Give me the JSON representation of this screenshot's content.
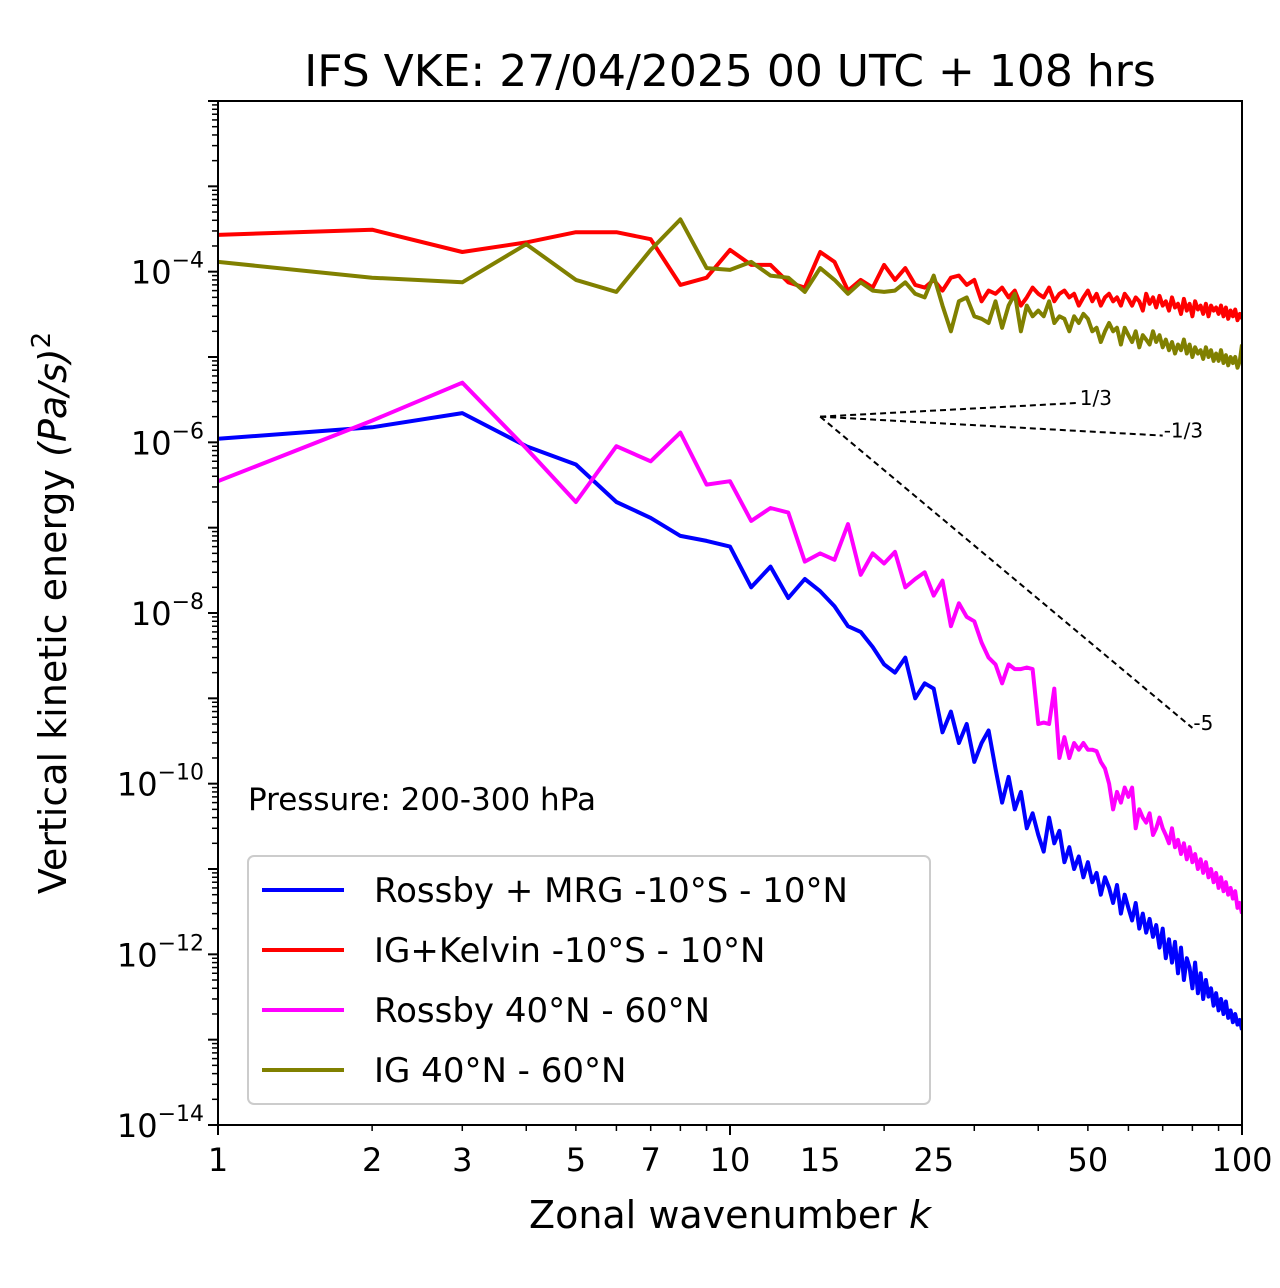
{
  "chart_data": {
    "type": "line",
    "title": "IFS VKE: 27/04/2025 00 UTC + 108 hrs",
    "xlabel": "Zonal wavenumber",
    "xlabel_italic": "k",
    "ylabel": "Vertical kinetic energy",
    "ylabel_math": "(Pa/s)",
    "ylabel_exp": "2",
    "x_scale": "log",
    "y_scale": "log",
    "xlim": [
      1,
      100
    ],
    "ylim": [
      1e-14,
      0.01
    ],
    "x_ticks": [
      1,
      2,
      3,
      5,
      7,
      10,
      15,
      25,
      50,
      100
    ],
    "y_ticks": [
      {
        "base": "10",
        "exp": "−14",
        "value": 1e-14
      },
      {
        "base": "10",
        "exp": "−12",
        "value": 1e-12
      },
      {
        "base": "10",
        "exp": "−10",
        "value": 1e-10
      },
      {
        "base": "10",
        "exp": "−8",
        "value": 1e-08
      },
      {
        "base": "10",
        "exp": "−6",
        "value": 1e-06
      },
      {
        "base": "10",
        "exp": "−4",
        "value": 0.0001
      }
    ],
    "annotation": "Pressure: 200-300 hPa",
    "legend_position": "lower-left",
    "reference_slopes": [
      {
        "label": "1/3",
        "x": [
          15,
          48
        ],
        "y": [
          2e-06,
          2.9e-06
        ]
      },
      {
        "label": "-1/3",
        "x": [
          15,
          70
        ],
        "y": [
          2e-06,
          1.2e-06
        ]
      },
      {
        "label": "-5",
        "x": [
          15,
          80
        ],
        "y": [
          2e-06,
          4.5e-10
        ]
      }
    ],
    "series": [
      {
        "name": "Rossby + MRG -10°S - 10°N",
        "color": "#0000ff",
        "x": [
          1,
          2,
          3,
          4,
          5,
          6,
          7,
          8,
          9,
          10,
          11,
          12,
          13,
          14,
          15,
          16,
          17,
          18,
          19,
          20,
          21,
          22,
          23,
          24,
          25,
          26,
          27,
          28,
          29,
          30,
          31,
          32,
          33,
          34,
          35,
          36,
          37,
          38,
          39,
          40,
          41,
          42,
          43,
          44,
          45,
          46,
          47,
          48,
          49,
          50,
          51,
          52,
          53,
          54,
          55,
          56,
          57,
          58,
          59,
          60,
          61,
          62,
          63,
          64,
          65,
          66,
          67,
          68,
          69,
          70,
          71,
          72,
          73,
          74,
          75,
          76,
          77,
          78,
          79,
          80,
          81,
          82,
          83,
          84,
          85,
          86,
          87,
          88,
          89,
          90,
          91,
          92,
          93,
          94,
          95,
          96,
          97,
          98,
          99,
          100
        ],
        "y": [
          1.1e-06,
          1.5e-06,
          2.2e-06,
          9e-07,
          5.5e-07,
          2e-07,
          1.3e-07,
          8e-08,
          7e-08,
          6e-08,
          2e-08,
          3.5e-08,
          1.5e-08,
          2.5e-08,
          1.8e-08,
          1.2e-08,
          7e-09,
          6e-09,
          4e-09,
          2.5e-09,
          2e-09,
          3e-09,
          1e-09,
          1.5e-09,
          1.3e-09,
          4e-10,
          7e-10,
          3e-10,
          5e-10,
          1.8e-10,
          3e-10,
          4.2e-10,
          1.5e-10,
          6e-11,
          1.2e-10,
          5e-11,
          8e-11,
          3e-11,
          4.5e-11,
          2.5e-11,
          1.6e-11,
          4e-11,
          2e-11,
          2.8e-11,
          1.2e-11,
          1.8e-11,
          1e-11,
          1.4e-11,
          8e-12,
          1.2e-11,
          7e-12,
          9e-12,
          5e-12,
          8e-12,
          6e-12,
          4e-12,
          6.5e-12,
          3e-12,
          5e-12,
          3.5e-12,
          2.5e-12,
          4e-12,
          2e-12,
          3e-12,
          1.8e-12,
          2.6e-12,
          1.6e-12,
          2.2e-12,
          1.2e-12,
          2e-12,
          9e-13,
          1.5e-12,
          8e-13,
          1.4e-12,
          6e-13,
          1.2e-12,
          5e-13,
          9e-13,
          7e-13,
          4e-13,
          8e-13,
          3.5e-13,
          6e-13,
          3e-13,
          5e-13,
          3.2e-13,
          4e-13,
          2.5e-13,
          3.5e-13,
          2.2e-13,
          3e-13,
          2e-13,
          2.8e-13,
          1.8e-13,
          2.2e-13,
          1.6e-13,
          2e-13,
          1.5e-13,
          1.7e-13,
          1.3e-13
        ]
      },
      {
        "name": "IG+Kelvin -10°S - 10°N",
        "color": "#ff0000",
        "x": [
          1,
          2,
          3,
          4,
          5,
          6,
          7,
          8,
          9,
          10,
          11,
          12,
          13,
          14,
          15,
          16,
          17,
          18,
          19,
          20,
          21,
          22,
          23,
          24,
          25,
          26,
          27,
          28,
          29,
          30,
          31,
          32,
          33,
          34,
          35,
          36,
          37,
          38,
          39,
          40,
          41,
          42,
          43,
          44,
          45,
          46,
          47,
          48,
          49,
          50,
          51,
          52,
          53,
          54,
          55,
          56,
          57,
          58,
          59,
          60,
          61,
          62,
          63,
          64,
          65,
          66,
          67,
          68,
          69,
          70,
          71,
          72,
          73,
          74,
          75,
          76,
          77,
          78,
          79,
          80,
          81,
          82,
          83,
          84,
          85,
          86,
          87,
          88,
          89,
          90,
          91,
          92,
          93,
          94,
          95,
          96,
          97,
          98,
          99,
          100
        ],
        "y": [
          0.00027,
          0.00031,
          0.00017,
          0.00022,
          0.00029,
          0.00029,
          0.00024,
          7e-05,
          8.5e-05,
          0.00018,
          0.00012,
          0.00012,
          7.5e-05,
          6.5e-05,
          0.00017,
          0.00013,
          6e-05,
          8e-05,
          6.5e-05,
          0.00012,
          8e-05,
          0.00011,
          7e-05,
          6.5e-05,
          8e-05,
          6e-05,
          8.5e-05,
          9e-05,
          7e-05,
          8e-05,
          4.5e-05,
          6e-05,
          5.5e-05,
          6.5e-05,
          5e-05,
          6e-05,
          4e-05,
          5e-05,
          6.5e-05,
          5.5e-05,
          5e-05,
          6.5e-05,
          4.5e-05,
          5.5e-05,
          6e-05,
          5e-05,
          5.5e-05,
          4e-05,
          5e-05,
          6e-05,
          4.5e-05,
          5.5e-05,
          4e-05,
          5e-05,
          5.5e-05,
          4.5e-05,
          5e-05,
          4e-05,
          5.5e-05,
          4.8e-05,
          4e-05,
          5e-05,
          4.5e-05,
          3.5e-05,
          5.5e-05,
          4.2e-05,
          5e-05,
          3.8e-05,
          5.2e-05,
          4e-05,
          4.5e-05,
          3.5e-05,
          5e-05,
          3.8e-05,
          4.2e-05,
          3.2e-05,
          4.8e-05,
          3.5e-05,
          4.2e-05,
          3e-05,
          4.5e-05,
          3.6e-05,
          4e-05,
          3.2e-05,
          4.2e-05,
          3e-05,
          4e-05,
          3.5e-05,
          3.8e-05,
          3.2e-05,
          4e-05,
          3e-05,
          3.8e-05,
          2.8e-05,
          3.5e-05,
          3e-05,
          3.6e-05,
          2.7e-05,
          3.2e-05,
          2.8e-05
        ]
      },
      {
        "name": "Rossby 40°N - 60°N",
        "color": "#ff00ff",
        "x": [
          1,
          2,
          3,
          4,
          5,
          6,
          7,
          8,
          9,
          10,
          11,
          12,
          13,
          14,
          15,
          16,
          17,
          18,
          19,
          20,
          21,
          22,
          23,
          24,
          25,
          26,
          27,
          28,
          29,
          30,
          31,
          32,
          33,
          34,
          35,
          36,
          37,
          38,
          39,
          40,
          41,
          42,
          43,
          44,
          45,
          46,
          47,
          48,
          49,
          50,
          51,
          52,
          53,
          54,
          55,
          56,
          57,
          58,
          59,
          60,
          61,
          62,
          63,
          64,
          65,
          66,
          67,
          68,
          69,
          70,
          71,
          72,
          73,
          74,
          75,
          76,
          77,
          78,
          79,
          80,
          81,
          82,
          83,
          84,
          85,
          86,
          87,
          88,
          89,
          90,
          91,
          92,
          93,
          94,
          95,
          96,
          97,
          98,
          99,
          100
        ],
        "y": [
          3.5e-07,
          1.8e-06,
          5e-06,
          8.5e-07,
          2e-07,
          9e-07,
          6e-07,
          1.3e-06,
          3.2e-07,
          3.5e-07,
          1.2e-07,
          1.7e-07,
          1.5e-07,
          4e-08,
          5e-08,
          4.2e-08,
          1.1e-07,
          2.8e-08,
          5e-08,
          3.8e-08,
          5.2e-08,
          2e-08,
          2.5e-08,
          3e-08,
          1.6e-08,
          2.4e-08,
          7e-09,
          1.3e-08,
          9e-09,
          8e-09,
          4.5e-09,
          3e-09,
          2.5e-09,
          1.5e-09,
          2.5e-09,
          2.2e-09,
          2.2e-09,
          2.3e-09,
          2.2e-09,
          5e-10,
          5.2e-10,
          5e-10,
          1.3e-09,
          2e-10,
          3.5e-10,
          2e-10,
          3e-10,
          2.5e-10,
          3e-10,
          2.5e-10,
          2.5e-10,
          2.4e-10,
          1.8e-10,
          1.5e-10,
          1e-10,
          5e-11,
          8e-11,
          6e-11,
          9e-11,
          7e-11,
          9e-11,
          3e-11,
          5e-11,
          4e-11,
          3.5e-11,
          4.5e-11,
          2.5e-11,
          3e-11,
          4e-11,
          3e-11,
          2.5e-11,
          2e-11,
          3e-11,
          1.8e-11,
          2.2e-11,
          1.5e-11,
          2e-11,
          1.3e-11,
          1.8e-11,
          1.2e-11,
          1.5e-11,
          1e-11,
          1.3e-11,
          9e-12,
          1.2e-11,
          8e-12,
          1e-11,
          7e-12,
          9e-12,
          6e-12,
          8e-12,
          5.5e-12,
          7e-12,
          5e-12,
          6e-12,
          4.5e-12,
          5.5e-12,
          3.5e-12,
          4e-12,
          3e-12
        ]
      },
      {
        "name": "IG 40°N - 60°N",
        "color": "#808000",
        "x": [
          1,
          2,
          3,
          4,
          5,
          6,
          7,
          8,
          9,
          10,
          11,
          12,
          13,
          14,
          15,
          16,
          17,
          18,
          19,
          20,
          21,
          22,
          23,
          24,
          25,
          26,
          27,
          28,
          29,
          30,
          31,
          32,
          33,
          34,
          35,
          36,
          37,
          38,
          39,
          40,
          41,
          42,
          43,
          44,
          45,
          46,
          47,
          48,
          49,
          50,
          51,
          52,
          53,
          54,
          55,
          56,
          57,
          58,
          59,
          60,
          61,
          62,
          63,
          64,
          65,
          66,
          67,
          68,
          69,
          70,
          71,
          72,
          73,
          74,
          75,
          76,
          77,
          78,
          79,
          80,
          81,
          82,
          83,
          84,
          85,
          86,
          87,
          88,
          89,
          90,
          91,
          92,
          93,
          94,
          95,
          96,
          97,
          98,
          99,
          100
        ],
        "y": [
          0.00013,
          8.5e-05,
          7.5e-05,
          0.00021,
          8e-05,
          5.8e-05,
          0.00018,
          0.00041,
          0.00011,
          0.000105,
          0.00013,
          9e-05,
          8.5e-05,
          5.8e-05,
          0.00011,
          8e-05,
          5.5e-05,
          7.5e-05,
          6e-05,
          5.8e-05,
          6e-05,
          7.5e-05,
          5.5e-05,
          5e-05,
          9e-05,
          4e-05,
          2e-05,
          4.5e-05,
          5e-05,
          3e-05,
          2.8e-05,
          2.5e-05,
          4.5e-05,
          2.2e-05,
          4e-05,
          5.5e-05,
          2e-05,
          4e-05,
          3e-05,
          3.5e-05,
          3e-05,
          4.5e-05,
          2.5e-05,
          3e-05,
          2.8e-05,
          2e-05,
          3e-05,
          2.5e-05,
          3.2e-05,
          2.8e-05,
          2e-05,
          2.2e-05,
          1.5e-05,
          2e-05,
          2.5e-05,
          2e-05,
          2.2e-05,
          1.4e-05,
          2.2e-05,
          1.8e-05,
          1.5e-05,
          2e-05,
          1.3e-05,
          1.8e-05,
          1.6e-05,
          1.4e-05,
          2e-05,
          1.5e-05,
          1.8e-05,
          1.3e-05,
          1.6e-05,
          1.2e-05,
          1.5e-05,
          1.1e-05,
          1.4e-05,
          1.2e-05,
          1.6e-05,
          1.1e-05,
          1.4e-05,
          1e-05,
          1.3e-05,
          1.1e-05,
          1.2e-05,
          9.5e-06,
          1.3e-05,
          1e-05,
          1.2e-05,
          9e-06,
          1.1e-05,
          9e-06,
          1.2e-05,
          8.5e-06,
          1.05e-05,
          8e-06,
          1e-05,
          8.5e-06,
          1e-05,
          7.5e-06,
          9e-06,
          1.4e-05
        ]
      }
    ]
  }
}
